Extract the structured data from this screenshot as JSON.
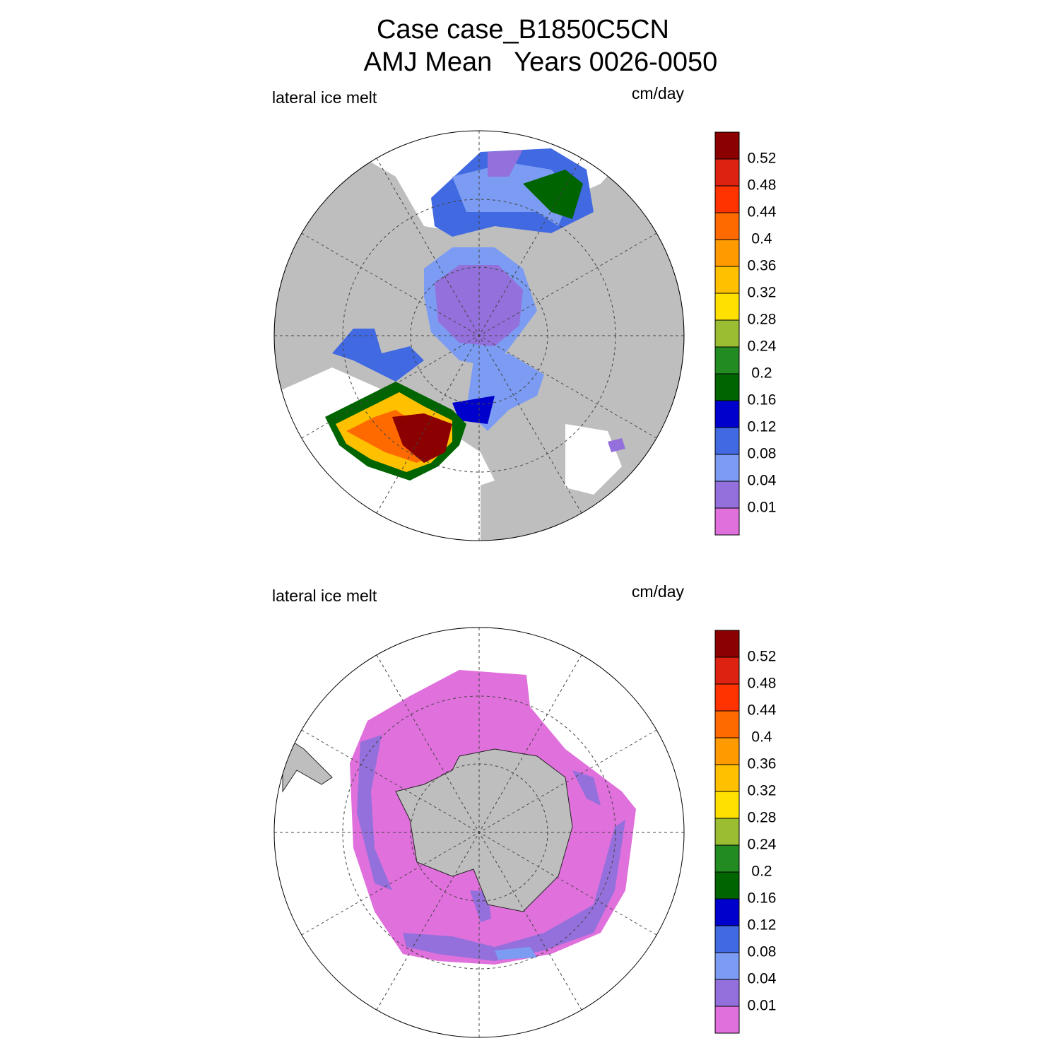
{
  "header": {
    "title_line1": "Case case_B1850C5CN",
    "title_line2": "AMJ Mean   Years 0026-0050"
  },
  "panels": [
    {
      "left_label": "lateral ice melt",
      "units": "cm/day",
      "colorbar": {
        "labels": [
          "0.01",
          "0.04",
          "0.08",
          "0.12",
          "0.16",
          "0.2",
          "0.24",
          "0.28",
          "0.32",
          "0.36",
          "0.4",
          "0.44",
          "0.48",
          "0.52"
        ],
        "colors": [
          "#e070dc",
          "#9370db",
          "#7b9cf2",
          "#4169e1",
          "#0000cd",
          "#006400",
          "#228b22",
          "#9abd32",
          "#ffe000",
          "#ffc000",
          "#ff9a00",
          "#ff6a00",
          "#ff3300",
          "#dd2211",
          "#8b0000"
        ]
      }
    },
    {
      "left_label": "lateral ice melt",
      "units": "cm/day",
      "colorbar": {
        "labels": [
          "0.01",
          "0.04",
          "0.08",
          "0.12",
          "0.16",
          "0.2",
          "0.24",
          "0.28",
          "0.32",
          "0.36",
          "0.4",
          "0.44",
          "0.48",
          "0.52"
        ],
        "colors": [
          "#e070dc",
          "#9370db",
          "#7b9cf2",
          "#4169e1",
          "#0000cd",
          "#006400",
          "#228b22",
          "#9abd32",
          "#ffe000",
          "#ffc000",
          "#ff9a00",
          "#ff6a00",
          "#ff3300",
          "#dd2211",
          "#8b0000"
        ]
      }
    }
  ]
}
